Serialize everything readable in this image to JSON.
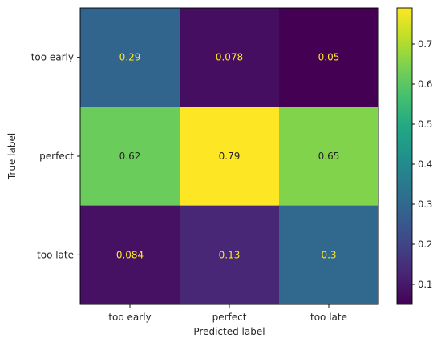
{
  "chart_data": {
    "type": "heatmap",
    "title": "",
    "xlabel": "Predicted label",
    "ylabel": "True label",
    "x_categories": [
      "too early",
      "perfect",
      "too late"
    ],
    "y_categories": [
      "too early",
      "perfect",
      "too late"
    ],
    "values": [
      [
        0.29,
        0.078,
        0.05
      ],
      [
        0.62,
        0.79,
        0.65
      ],
      [
        0.084,
        0.13,
        0.3
      ]
    ],
    "value_labels": [
      [
        "0.29",
        "0.078",
        "0.05"
      ],
      [
        "0.62",
        "0.79",
        "0.65"
      ],
      [
        "0.084",
        "0.13",
        "0.3"
      ]
    ],
    "colormap": "viridis",
    "colorbar": {
      "range": [
        0.05,
        0.79
      ],
      "ticks": [
        0.1,
        0.2,
        0.3,
        0.4,
        0.5,
        0.6,
        0.7
      ],
      "tick_labels": [
        "0.1",
        "0.2",
        "0.3",
        "0.4",
        "0.5",
        "0.6",
        "0.7"
      ]
    },
    "text_colors": {
      "dark_bg": "#fde725",
      "light_bg": "#262626"
    }
  }
}
